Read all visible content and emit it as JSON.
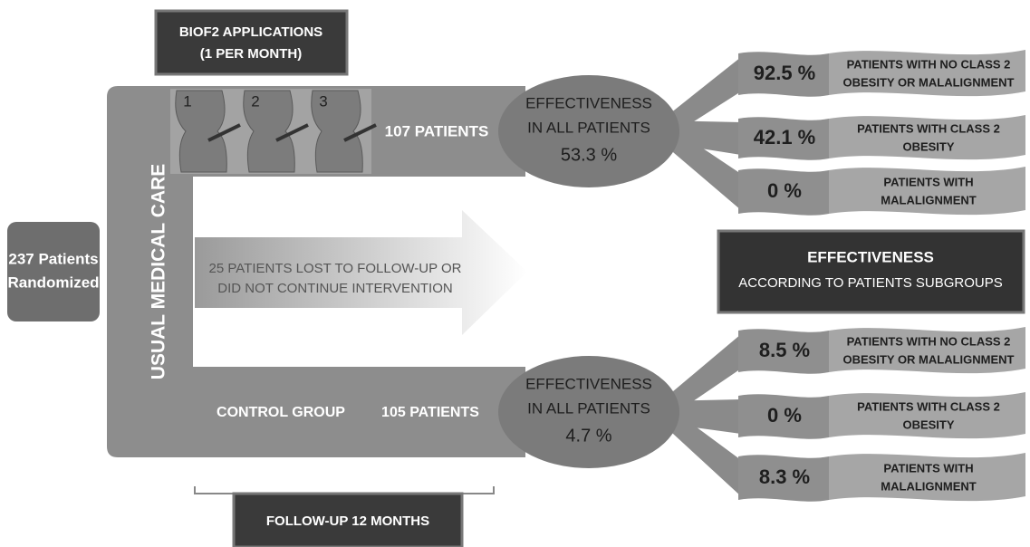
{
  "start": {
    "lines": [
      "237 Patients",
      "Randomized"
    ]
  },
  "side_label": "USUAL MEDICAL CARE",
  "intervention": {
    "title_lines": [
      "BIOF2 APPLICATIONS",
      "(1 PER MONTH)"
    ],
    "steps": [
      "1",
      "2",
      "3"
    ],
    "patients": "107 PATIENTS",
    "effect": {
      "lines": [
        "EFFECTIVENESS",
        "IN ALL  PATIENTS"
      ],
      "value": "53.3 %"
    },
    "subgroups": [
      {
        "value": "92.5 %",
        "lines": [
          "PATIENTS WITH NO CLASS 2",
          "OBESITY OR MALALIGNMENT"
        ]
      },
      {
        "value": "42.1 %",
        "lines": [
          "PATIENTS WITH CLASS 2",
          "OBESITY"
        ]
      },
      {
        "value": "0 %",
        "lines": [
          "PATIENTS WITH",
          "MALALIGNMENT"
        ]
      }
    ]
  },
  "lost": {
    "lines": [
      "25 PATIENTS LOST TO FOLLOW-UP OR",
      "DID NOT CONTINUE INTERVENTION"
    ]
  },
  "summary": {
    "title": "EFFECTIVENESS",
    "subtitle": "ACCORDING TO PATIENTS SUBGROUPS"
  },
  "control": {
    "group": "CONTROL GROUP",
    "patients": "105 PATIENTS",
    "effect": {
      "lines": [
        "EFFECTIVENESS",
        "IN ALL  PATIENTS"
      ],
      "value": "4.7 %"
    },
    "subgroups": [
      {
        "value": "8.5 %",
        "lines": [
          "PATIENTS WITH NO CLASS 2",
          "OBESITY OR MALALIGNMENT"
        ]
      },
      {
        "value": "0 %",
        "lines": [
          "PATIENTS WITH CLASS 2",
          "OBESITY"
        ]
      },
      {
        "value": "8.3 %",
        "lines": [
          "PATIENTS WITH",
          "MALALIGNMENT"
        ]
      }
    ]
  },
  "followup": "FOLLOW-UP 12 MONTHS"
}
